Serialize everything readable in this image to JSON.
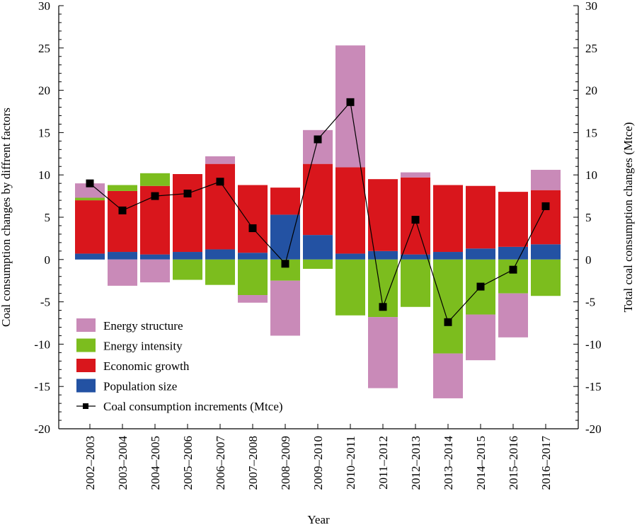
{
  "chart_data": {
    "type": "bar",
    "subtype": "stacked-bar-with-line",
    "xlabel": "Year",
    "ylabel_left": "Coal consumption changes by diffrent factors",
    "ylabel_right": "Total coal consumption changes (Mtce)",
    "ylim": [
      -20,
      30
    ],
    "yticks": [
      -20,
      -15,
      -10,
      -5,
      0,
      5,
      10,
      15,
      20,
      25,
      30
    ],
    "categories": [
      "2002–2003",
      "2003–2004",
      "2004–2005",
      "2005–2006",
      "2006–2007",
      "2007–2008",
      "2008–2009",
      "2009–2010",
      "2010–2011",
      "2011–2012",
      "2012–2013",
      "2013–2014",
      "2014–2015",
      "2015–2016",
      "2016–2017"
    ],
    "series": [
      {
        "name": "Population size",
        "color": "#2352a3",
        "values": [
          0.7,
          0.9,
          0.6,
          0.9,
          1.2,
          0.8,
          5.3,
          2.9,
          0.7,
          1.0,
          0.6,
          0.9,
          1.3,
          1.5,
          1.8
        ]
      },
      {
        "name": "Economic growth",
        "color": "#d9161c",
        "values": [
          6.3,
          7.2,
          8.1,
          9.2,
          10.1,
          8.0,
          3.2,
          8.4,
          10.2,
          8.5,
          9.1,
          7.9,
          7.4,
          6.5,
          6.4
        ]
      },
      {
        "name": "Energy intensity",
        "color": "#7cbd1e",
        "values": [
          0.3,
          0.7,
          1.5,
          -2.4,
          -3.0,
          -4.2,
          -2.5,
          -1.1,
          -6.6,
          -6.8,
          -5.6,
          -11.1,
          -6.5,
          -4.0,
          -4.3
        ]
      },
      {
        "name": "Energy structure",
        "color": "#c98ab8",
        "values": [
          1.7,
          -3.1,
          -2.7,
          0.0,
          0.9,
          -0.9,
          -6.5,
          4.0,
          14.4,
          -8.4,
          0.6,
          -5.3,
          -5.4,
          -5.2,
          2.4
        ]
      }
    ],
    "line": {
      "name": "Coal consumption increments (Mtce)",
      "color": "#000000",
      "values": [
        9.0,
        5.8,
        7.5,
        7.8,
        9.2,
        3.7,
        -0.5,
        14.2,
        18.6,
        -5.6,
        4.7,
        -7.4,
        -3.2,
        -1.2,
        6.3
      ]
    },
    "legend": {
      "position": "bottom-left",
      "items": [
        {
          "label": "Energy structure",
          "color": "#c98ab8",
          "kind": "box"
        },
        {
          "label": "Energy intensity",
          "color": "#7cbd1e",
          "kind": "box"
        },
        {
          "label": "Economic growth",
          "color": "#d9161c",
          "kind": "box"
        },
        {
          "label": "Population size",
          "color": "#2352a3",
          "kind": "box"
        },
        {
          "label": "Coal consumption increments (Mtce)",
          "color": "#000000",
          "kind": "line"
        }
      ]
    },
    "grid": false
  }
}
